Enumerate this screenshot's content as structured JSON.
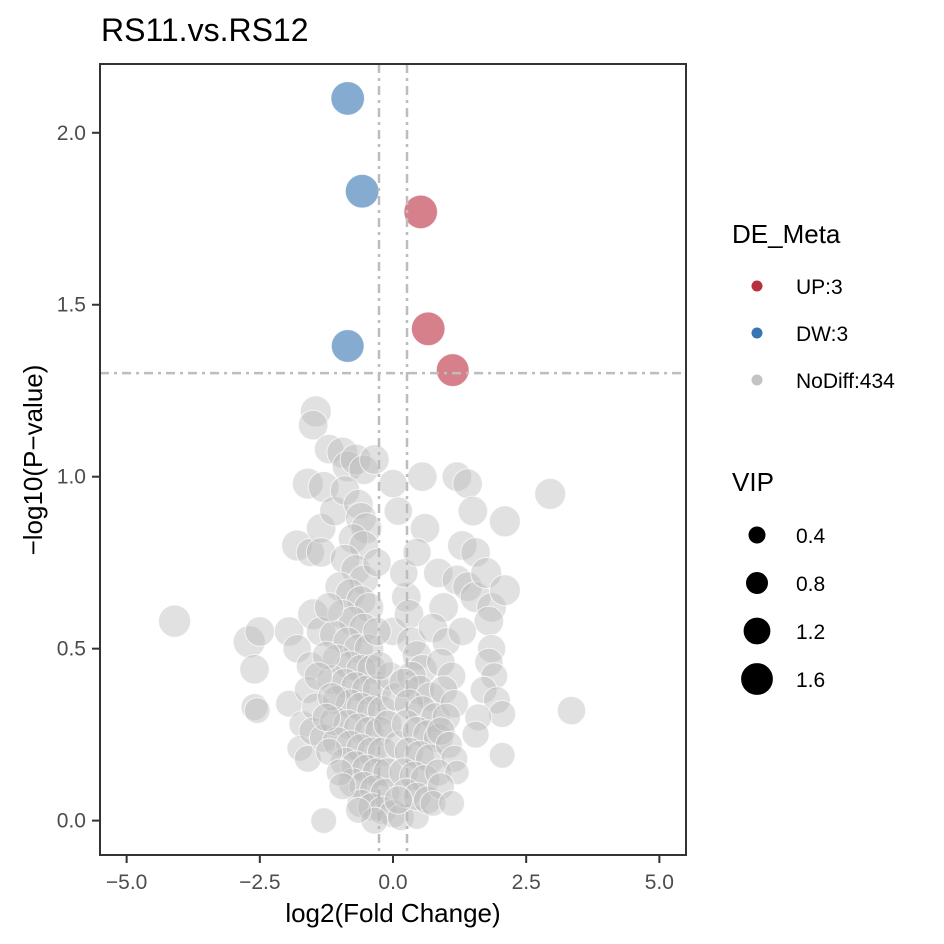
{
  "chart_data": {
    "type": "scatter",
    "title": "RS11.vs.RS12",
    "xlabel": "log2(Fold Change)",
    "ylabel": "−log10(P−value)",
    "xlim": [
      -5.5,
      5.5
    ],
    "ylim": [
      -0.1,
      2.2
    ],
    "xticks": [
      -5,
      -2.5,
      0,
      2.5,
      5
    ],
    "xtick_labels": [
      "−5.0",
      "−2.5",
      "0.0",
      "2.5",
      "5.0"
    ],
    "yticks": [
      0,
      0.5,
      1,
      1.5,
      2
    ],
    "ytick_labels": [
      "0.0",
      "0.5",
      "1.0",
      "1.5",
      "2.0"
    ],
    "thresholds": {
      "x": [
        -0.263,
        0.263
      ],
      "y": 1.301
    },
    "grid": false,
    "legend_position": "right",
    "colors": {
      "UP": "#b2182b",
      "DW": "#2166ac",
      "NoDiff": "#bdbdbd"
    },
    "legend_color": {
      "title": "DE_Meta",
      "entries": [
        {
          "key": "UP",
          "label": "UP:3"
        },
        {
          "key": "DW",
          "label": "DW:3"
        },
        {
          "key": "NoDiff",
          "label": "NoDiff:434"
        }
      ]
    },
    "legend_size": {
      "title": "VIP",
      "entries": [
        {
          "value": 0.4,
          "label": "0.4"
        },
        {
          "value": 0.8,
          "label": "0.8"
        },
        {
          "value": 1.2,
          "label": "1.2"
        },
        {
          "value": 1.6,
          "label": "1.6"
        }
      ]
    },
    "series": [
      {
        "name": "UP:3",
        "group": "UP",
        "points": [
          {
            "x": 0.52,
            "y": 1.77,
            "vip": 1.5
          },
          {
            "x": 0.66,
            "y": 1.43,
            "vip": 1.5
          },
          {
            "x": 1.12,
            "y": 1.31,
            "vip": 1.45
          }
        ]
      },
      {
        "name": "DW:3",
        "group": "DW",
        "points": [
          {
            "x": -0.85,
            "y": 2.1,
            "vip": 1.5
          },
          {
            "x": -0.58,
            "y": 1.83,
            "vip": 1.5
          },
          {
            "x": -0.85,
            "y": 1.38,
            "vip": 1.45
          }
        ]
      },
      {
        "name": "NoDiff:434",
        "group": "NoDiff",
        "points": [
          {
            "x": -4.1,
            "y": 0.58,
            "vip": 1.4
          },
          {
            "x": -2.7,
            "y": 0.52,
            "vip": 1.4
          },
          {
            "x": -2.5,
            "y": 0.55,
            "vip": 1.2
          },
          {
            "x": -2.6,
            "y": 0.44,
            "vip": 1.2
          },
          {
            "x": -2.6,
            "y": 0.33,
            "vip": 1.0
          },
          {
            "x": -2.55,
            "y": 0.32,
            "vip": 0.9
          },
          {
            "x": -1.95,
            "y": 0.55,
            "vip": 1.2
          },
          {
            "x": -1.8,
            "y": 0.5,
            "vip": 1.1
          },
          {
            "x": -1.95,
            "y": 0.34,
            "vip": 1.0
          },
          {
            "x": -1.8,
            "y": 0.8,
            "vip": 1.3
          },
          {
            "x": -1.55,
            "y": 0.78,
            "vip": 1.1
          },
          {
            "x": -1.7,
            "y": 0.28,
            "vip": 1.0
          },
          {
            "x": -1.75,
            "y": 0.21,
            "vip": 0.9
          },
          {
            "x": -1.45,
            "y": 1.19,
            "vip": 1.3
          },
          {
            "x": -1.5,
            "y": 1.15,
            "vip": 1.2
          },
          {
            "x": -1.6,
            "y": 0.98,
            "vip": 1.3
          },
          {
            "x": -1.3,
            "y": 0.97,
            "vip": 1.3
          },
          {
            "x": -1.2,
            "y": 1.08,
            "vip": 1.2
          },
          {
            "x": -1.35,
            "y": 0.85,
            "vip": 1.2
          },
          {
            "x": -1.1,
            "y": 0.9,
            "vip": 1.2
          },
          {
            "x": -1.35,
            "y": 0.78,
            "vip": 1.2
          },
          {
            "x": -1.5,
            "y": 0.6,
            "vip": 1.3
          },
          {
            "x": -1.35,
            "y": 0.55,
            "vip": 1.2
          },
          {
            "x": -1.55,
            "y": 0.45,
            "vip": 1.1
          },
          {
            "x": -1.6,
            "y": 0.38,
            "vip": 1.0
          },
          {
            "x": -1.45,
            "y": 0.33,
            "vip": 1.1
          },
          {
            "x": -1.5,
            "y": 0.26,
            "vip": 1.1
          },
          {
            "x": -1.6,
            "y": 0.18,
            "vip": 1.0
          },
          {
            "x": -1.3,
            "y": 0.24,
            "vip": 1.1
          },
          {
            "x": -0.95,
            "y": 1.07,
            "vip": 1.3
          },
          {
            "x": -0.85,
            "y": 1.03,
            "vip": 1.3
          },
          {
            "x": -0.7,
            "y": 1.05,
            "vip": 1.3
          },
          {
            "x": -0.55,
            "y": 1.02,
            "vip": 1.2
          },
          {
            "x": -0.9,
            "y": 0.96,
            "vip": 1.2
          },
          {
            "x": -0.65,
            "y": 0.92,
            "vip": 1.2
          },
          {
            "x": -0.6,
            "y": 0.88,
            "vip": 1.3
          },
          {
            "x": -0.5,
            "y": 0.85,
            "vip": 1.3
          },
          {
            "x": -0.75,
            "y": 0.82,
            "vip": 1.2
          },
          {
            "x": -0.55,
            "y": 0.8,
            "vip": 1.2
          },
          {
            "x": -0.9,
            "y": 0.76,
            "vip": 1.2
          },
          {
            "x": -0.7,
            "y": 0.73,
            "vip": 1.2
          },
          {
            "x": -0.55,
            "y": 0.7,
            "vip": 1.2
          },
          {
            "x": -1.0,
            "y": 0.68,
            "vip": 1.2
          },
          {
            "x": -0.8,
            "y": 0.66,
            "vip": 1.2
          },
          {
            "x": -0.6,
            "y": 0.64,
            "vip": 1.2
          },
          {
            "x": -0.45,
            "y": 0.62,
            "vip": 1.2
          },
          {
            "x": -0.95,
            "y": 0.6,
            "vip": 1.2
          },
          {
            "x": -0.75,
            "y": 0.58,
            "vip": 1.2
          },
          {
            "x": -0.55,
            "y": 0.56,
            "vip": 1.2
          },
          {
            "x": -1.1,
            "y": 0.54,
            "vip": 1.2
          },
          {
            "x": -0.85,
            "y": 0.52,
            "vip": 1.2
          },
          {
            "x": -0.65,
            "y": 0.5,
            "vip": 1.2
          },
          {
            "x": -0.45,
            "y": 0.5,
            "vip": 1.2
          },
          {
            "x": -1.05,
            "y": 0.47,
            "vip": 1.2
          },
          {
            "x": -0.8,
            "y": 0.45,
            "vip": 1.2
          },
          {
            "x": -0.6,
            "y": 0.44,
            "vip": 1.2
          },
          {
            "x": -0.4,
            "y": 0.44,
            "vip": 1.2
          },
          {
            "x": -1.15,
            "y": 0.41,
            "vip": 1.2
          },
          {
            "x": -0.9,
            "y": 0.4,
            "vip": 1.2
          },
          {
            "x": -0.7,
            "y": 0.39,
            "vip": 1.2
          },
          {
            "x": -0.5,
            "y": 0.38,
            "vip": 1.2
          },
          {
            "x": -0.3,
            "y": 0.38,
            "vip": 1.2
          },
          {
            "x": -1.05,
            "y": 0.35,
            "vip": 1.2
          },
          {
            "x": -0.8,
            "y": 0.34,
            "vip": 1.2
          },
          {
            "x": -0.6,
            "y": 0.33,
            "vip": 1.2
          },
          {
            "x": -0.4,
            "y": 0.32,
            "vip": 1.2
          },
          {
            "x": -0.2,
            "y": 0.32,
            "vip": 1.2
          },
          {
            "x": -1.1,
            "y": 0.29,
            "vip": 1.2
          },
          {
            "x": -0.85,
            "y": 0.28,
            "vip": 1.2
          },
          {
            "x": -0.65,
            "y": 0.27,
            "vip": 1.2
          },
          {
            "x": -0.45,
            "y": 0.26,
            "vip": 1.2
          },
          {
            "x": -0.25,
            "y": 0.26,
            "vip": 1.2
          },
          {
            "x": -1.05,
            "y": 0.23,
            "vip": 1.2
          },
          {
            "x": -0.8,
            "y": 0.22,
            "vip": 1.2
          },
          {
            "x": -0.6,
            "y": 0.21,
            "vip": 1.2
          },
          {
            "x": -0.4,
            "y": 0.2,
            "vip": 1.2
          },
          {
            "x": -0.2,
            "y": 0.2,
            "vip": 1.2
          },
          {
            "x": -0.9,
            "y": 0.17,
            "vip": 1.2
          },
          {
            "x": -0.7,
            "y": 0.16,
            "vip": 1.2
          },
          {
            "x": -0.5,
            "y": 0.15,
            "vip": 1.2
          },
          {
            "x": -0.3,
            "y": 0.14,
            "vip": 1.2
          },
          {
            "x": -0.1,
            "y": 0.14,
            "vip": 1.2
          },
          {
            "x": -0.75,
            "y": 0.11,
            "vip": 1.2
          },
          {
            "x": -0.55,
            "y": 0.1,
            "vip": 1.2
          },
          {
            "x": -0.35,
            "y": 0.09,
            "vip": 1.2
          },
          {
            "x": -0.15,
            "y": 0.08,
            "vip": 1.2
          },
          {
            "x": -0.6,
            "y": 0.05,
            "vip": 1.1
          },
          {
            "x": -0.4,
            "y": 0.04,
            "vip": 1.1
          },
          {
            "x": -0.2,
            "y": 0.03,
            "vip": 1.1
          },
          {
            "x": 0.0,
            "y": 0.02,
            "vip": 1.1
          },
          {
            "x": -0.35,
            "y": 0.0,
            "vip": 1.0
          },
          {
            "x": -1.3,
            "y": 0.0,
            "vip": 0.9
          },
          {
            "x": -0.65,
            "y": 0.03,
            "vip": 0.9
          },
          {
            "x": 0.15,
            "y": 0.01,
            "vip": 1.0
          },
          {
            "x": 0.45,
            "y": 0.01,
            "vip": 0.8
          },
          {
            "x": -0.1,
            "y": 0.28,
            "vip": 1.1
          },
          {
            "x": -0.05,
            "y": 0.42,
            "vip": 1.1
          },
          {
            "x": 0.05,
            "y": 0.36,
            "vip": 1.1
          },
          {
            "x": 0.1,
            "y": 0.22,
            "vip": 1.1
          },
          {
            "x": 0.0,
            "y": 0.55,
            "vip": 1.1
          },
          {
            "x": 0.25,
            "y": 0.65,
            "vip": 1.2
          },
          {
            "x": 0.3,
            "y": 0.6,
            "vip": 1.2
          },
          {
            "x": 0.2,
            "y": 0.72,
            "vip": 1.1
          },
          {
            "x": 0.1,
            "y": 0.9,
            "vip": 1.1
          },
          {
            "x": 0.35,
            "y": 0.52,
            "vip": 1.2
          },
          {
            "x": 0.45,
            "y": 0.48,
            "vip": 1.2
          },
          {
            "x": 0.55,
            "y": 0.44,
            "vip": 1.2
          },
          {
            "x": 0.35,
            "y": 0.42,
            "vip": 1.2
          },
          {
            "x": 0.2,
            "y": 0.4,
            "vip": 1.2
          },
          {
            "x": 0.5,
            "y": 0.38,
            "vip": 1.2
          },
          {
            "x": 0.7,
            "y": 0.36,
            "vip": 1.2
          },
          {
            "x": 0.3,
            "y": 0.34,
            "vip": 1.2
          },
          {
            "x": 0.55,
            "y": 0.32,
            "vip": 1.2
          },
          {
            "x": 0.8,
            "y": 0.3,
            "vip": 1.2
          },
          {
            "x": 0.25,
            "y": 0.28,
            "vip": 1.2
          },
          {
            "x": 0.45,
            "y": 0.26,
            "vip": 1.2
          },
          {
            "x": 0.65,
            "y": 0.25,
            "vip": 1.2
          },
          {
            "x": 0.85,
            "y": 0.24,
            "vip": 1.2
          },
          {
            "x": 0.3,
            "y": 0.2,
            "vip": 1.2
          },
          {
            "x": 0.5,
            "y": 0.19,
            "vip": 1.2
          },
          {
            "x": 0.7,
            "y": 0.18,
            "vip": 1.2
          },
          {
            "x": 0.2,
            "y": 0.14,
            "vip": 1.2
          },
          {
            "x": 0.4,
            "y": 0.13,
            "vip": 1.2
          },
          {
            "x": 0.6,
            "y": 0.12,
            "vip": 1.2
          },
          {
            "x": 0.25,
            "y": 0.08,
            "vip": 1.2
          },
          {
            "x": 0.45,
            "y": 0.07,
            "vip": 1.1
          },
          {
            "x": 0.65,
            "y": 0.06,
            "vip": 1.1
          },
          {
            "x": 0.1,
            "y": 0.06,
            "vip": 1.1
          },
          {
            "x": 0.55,
            "y": 1.0,
            "vip": 1.2
          },
          {
            "x": 0.0,
            "y": 0.98,
            "vip": 1.1
          },
          {
            "x": 0.85,
            "y": 0.72,
            "vip": 1.2
          },
          {
            "x": 0.95,
            "y": 0.62,
            "vip": 1.2
          },
          {
            "x": 0.75,
            "y": 0.56,
            "vip": 1.2
          },
          {
            "x": 1.0,
            "y": 0.52,
            "vip": 1.1
          },
          {
            "x": 0.9,
            "y": 0.46,
            "vip": 1.1
          },
          {
            "x": 1.1,
            "y": 0.42,
            "vip": 1.1
          },
          {
            "x": 0.95,
            "y": 0.38,
            "vip": 1.1
          },
          {
            "x": 1.15,
            "y": 0.34,
            "vip": 1.1
          },
          {
            "x": 1.0,
            "y": 0.3,
            "vip": 1.1
          },
          {
            "x": 0.9,
            "y": 0.26,
            "vip": 1.1
          },
          {
            "x": 1.05,
            "y": 0.22,
            "vip": 1.0
          },
          {
            "x": 1.15,
            "y": 0.18,
            "vip": 1.0
          },
          {
            "x": 0.85,
            "y": 0.14,
            "vip": 1.0
          },
          {
            "x": 1.2,
            "y": 0.14,
            "vip": 0.8
          },
          {
            "x": 0.9,
            "y": 0.1,
            "vip": 1.0
          },
          {
            "x": 0.75,
            "y": 0.05,
            "vip": 0.9
          },
          {
            "x": 1.2,
            "y": 1.0,
            "vip": 1.2
          },
          {
            "x": 1.4,
            "y": 0.98,
            "vip": 1.2
          },
          {
            "x": 1.3,
            "y": 0.8,
            "vip": 1.2
          },
          {
            "x": 1.55,
            "y": 0.78,
            "vip": 1.2
          },
          {
            "x": 1.5,
            "y": 0.9,
            "vip": 1.2
          },
          {
            "x": 1.2,
            "y": 0.7,
            "vip": 1.2
          },
          {
            "x": 1.4,
            "y": 0.68,
            "vip": 1.2
          },
          {
            "x": 1.55,
            "y": 0.65,
            "vip": 1.3
          },
          {
            "x": 1.75,
            "y": 0.72,
            "vip": 1.3
          },
          {
            "x": 1.85,
            "y": 0.62,
            "vip": 1.2
          },
          {
            "x": 2.1,
            "y": 0.87,
            "vip": 1.3
          },
          {
            "x": 2.1,
            "y": 0.67,
            "vip": 1.3
          },
          {
            "x": 1.8,
            "y": 0.58,
            "vip": 1.2
          },
          {
            "x": 1.85,
            "y": 0.5,
            "vip": 1.1
          },
          {
            "x": 1.8,
            "y": 0.46,
            "vip": 1.1
          },
          {
            "x": 1.9,
            "y": 0.42,
            "vip": 1.0
          },
          {
            "x": 1.7,
            "y": 0.38,
            "vip": 1.0
          },
          {
            "x": 1.95,
            "y": 0.35,
            "vip": 1.0
          },
          {
            "x": 2.05,
            "y": 0.31,
            "vip": 1.0
          },
          {
            "x": 1.6,
            "y": 0.3,
            "vip": 1.0
          },
          {
            "x": 1.55,
            "y": 0.25,
            "vip": 1.0
          },
          {
            "x": 2.05,
            "y": 0.19,
            "vip": 0.9
          },
          {
            "x": 2.95,
            "y": 0.95,
            "vip": 1.3
          },
          {
            "x": 3.35,
            "y": 0.32,
            "vip": 1.1
          },
          {
            "x": -0.35,
            "y": 1.05,
            "vip": 1.2
          },
          {
            "x": -0.3,
            "y": 0.75,
            "vip": 1.1
          },
          {
            "x": -0.3,
            "y": 0.55,
            "vip": 1.1
          },
          {
            "x": -0.25,
            "y": 0.45,
            "vip": 1.1
          },
          {
            "x": 0.6,
            "y": 0.85,
            "vip": 1.2
          },
          {
            "x": 0.45,
            "y": 0.78,
            "vip": 1.1
          },
          {
            "x": 1.3,
            "y": 0.55,
            "vip": 1.1
          },
          {
            "x": -1.2,
            "y": 0.62,
            "vip": 1.2
          },
          {
            "x": -1.25,
            "y": 0.48,
            "vip": 1.1
          },
          {
            "x": -1.4,
            "y": 0.42,
            "vip": 1.1
          },
          {
            "x": -1.15,
            "y": 0.36,
            "vip": 1.1
          },
          {
            "x": -1.25,
            "y": 0.3,
            "vip": 1.1
          },
          {
            "x": -1.2,
            "y": 0.2,
            "vip": 1.0
          },
          {
            "x": -1.0,
            "y": 0.14,
            "vip": 1.0
          },
          {
            "x": -0.95,
            "y": 0.1,
            "vip": 1.0
          },
          {
            "x": 1.1,
            "y": 0.05,
            "vip": 0.9
          }
        ]
      }
    ]
  }
}
